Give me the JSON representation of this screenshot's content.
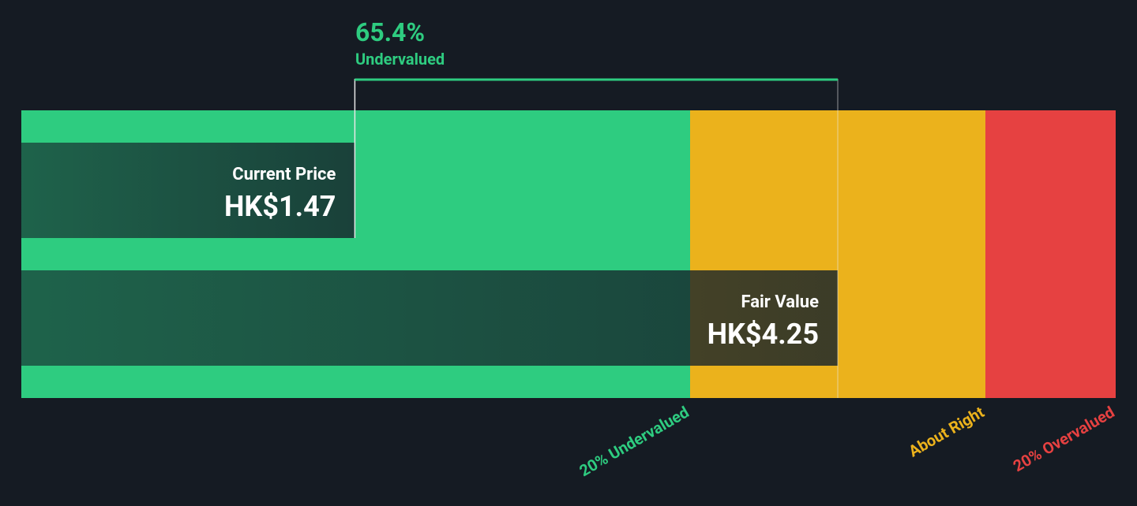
{
  "chart_data": {
    "type": "valuation",
    "xlim": [
      -0.45,
      5.85
    ],
    "discount": {
      "value": 65.4,
      "label": "65.4%"
    },
    "discount_text": "Undervalued",
    "discount_color": "#2ecc80",
    "bars": [
      {
        "name": "Current Price",
        "value": 1.47,
        "value_label": "HK$1.47"
      },
      {
        "name": "Fair Value",
        "value": 4.25,
        "value_label": "HK$4.25"
      }
    ],
    "zones": [
      {
        "label": "20% Undervalued",
        "end": 3.4,
        "color": "#2ecc80"
      },
      {
        "label": "About Right",
        "end": 5.1,
        "color": "#ebb21c"
      },
      {
        "label": "20% Overvalued",
        "end": 5.85,
        "color": "#e64141"
      }
    ]
  }
}
